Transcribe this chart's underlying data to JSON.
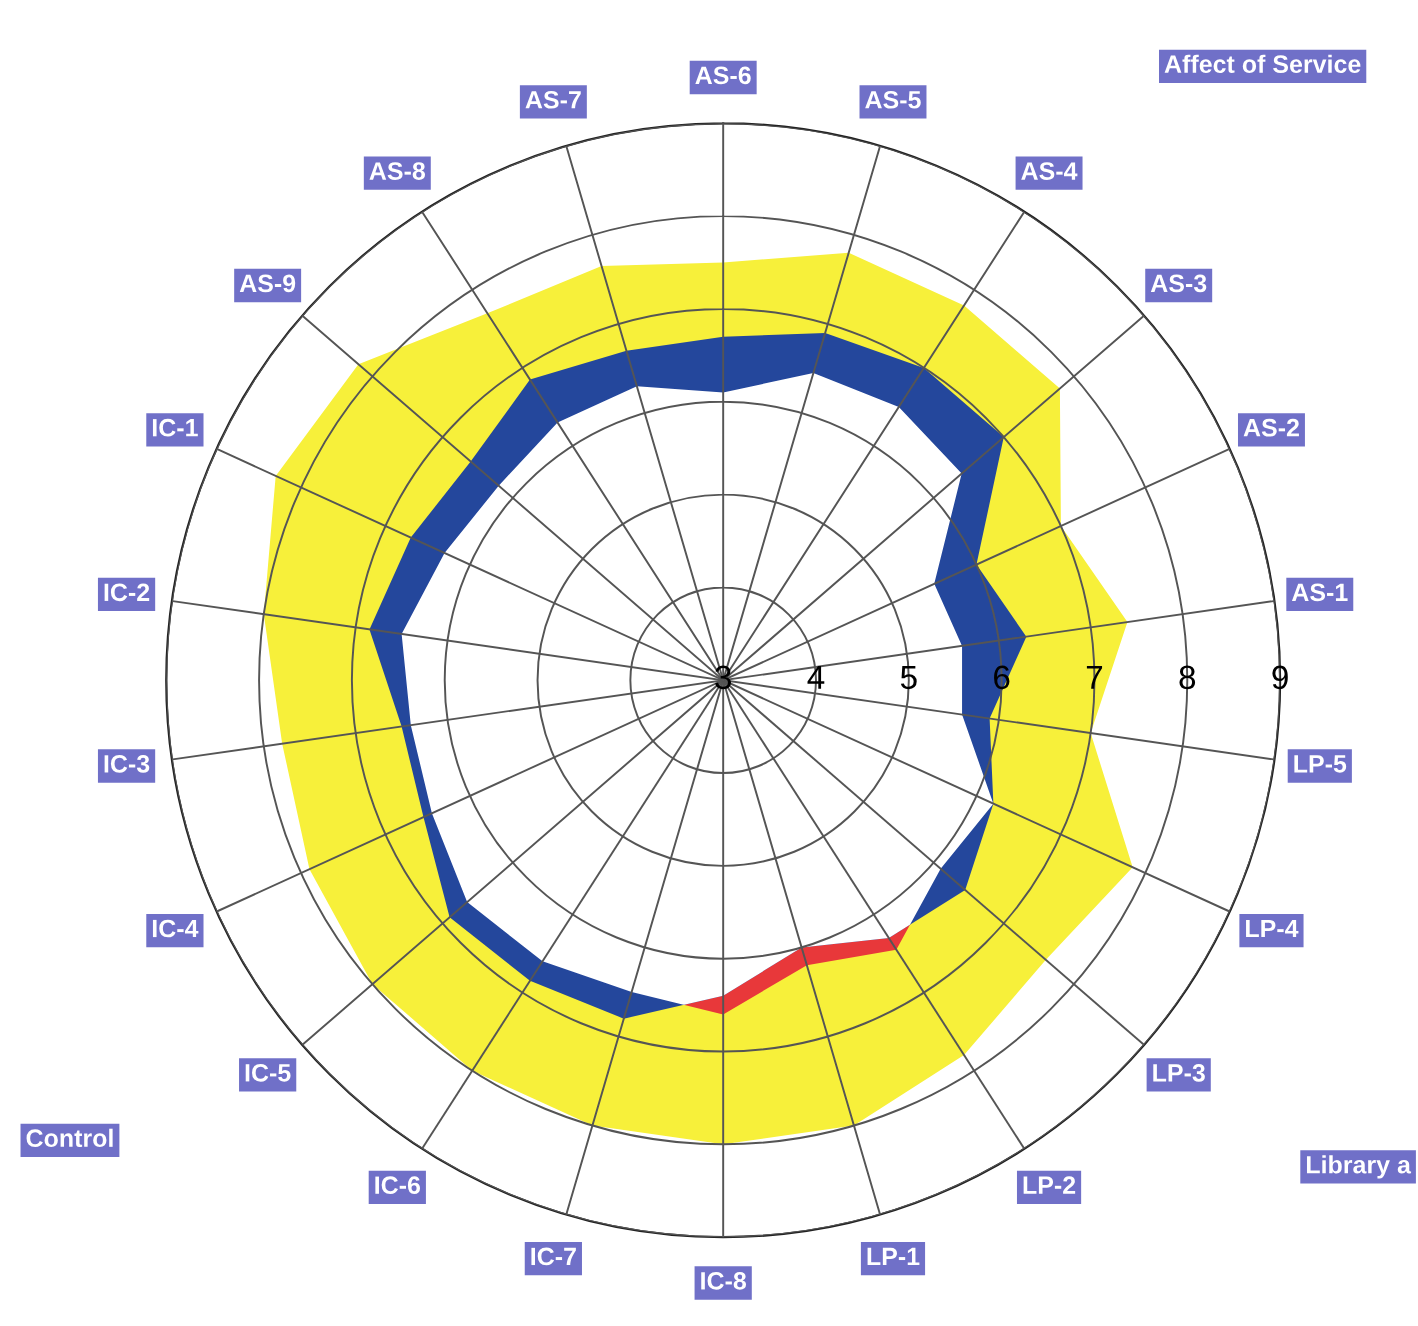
{
  "chart_data": {
    "type": "radar",
    "categories": [
      "AS-6",
      "AS-5",
      "AS-4",
      "AS-3",
      "AS-2",
      "AS-1",
      "LP-5",
      "LP-4",
      "LP-3",
      "LP-2",
      "LP-1",
      "IC-8",
      "IC-7",
      "IC-6",
      "IC-5",
      "IC-4",
      "IC-3",
      "IC-2",
      "IC-1",
      "AS-9",
      "AS-8",
      "AS-7"
    ],
    "series": [
      {
        "color": "#e8383a",
        "values": [
          6.1,
          6.45,
          6.5,
          6.4,
          5.5,
          5.6,
          5.6,
          6.2,
          6.1,
          6.45,
          6.2,
          6.6,
          6.5,
          6.6,
          6.65,
          6.45,
          6.4,
          6.5,
          6.3,
          6.2,
          6.3,
          6.3
        ]
      },
      {
        "color": "#f7f03a",
        "values": [
          7.5,
          7.8,
          7.8,
          7.8,
          7.0,
          7.4,
          7.0,
          7.85,
          7.6,
          7.8,
          8.0,
          8.0,
          8.0,
          8.0,
          8.0,
          7.9,
          7.8,
          8.0,
          8.3,
          8.2,
          7.7,
          7.65
        ]
      },
      {
        "color": "#24479c",
        "values": [
          6.7,
          6.9,
          7.0,
          7.0,
          6.0,
          6.3,
          5.9,
          6.2,
          6.45,
          6.3,
          6.0,
          6.4,
          6.8,
          6.85,
          6.9,
          6.55,
          6.5,
          6.85,
          6.7,
          6.6,
          6.85,
          6.7
        ]
      }
    ],
    "ylim": [
      3,
      9
    ],
    "yticks": [
      3,
      4,
      5,
      6,
      7,
      8,
      9
    ],
    "grid": true,
    "annotations": [
      "Affect of Service",
      "Library a",
      "Control"
    ]
  }
}
